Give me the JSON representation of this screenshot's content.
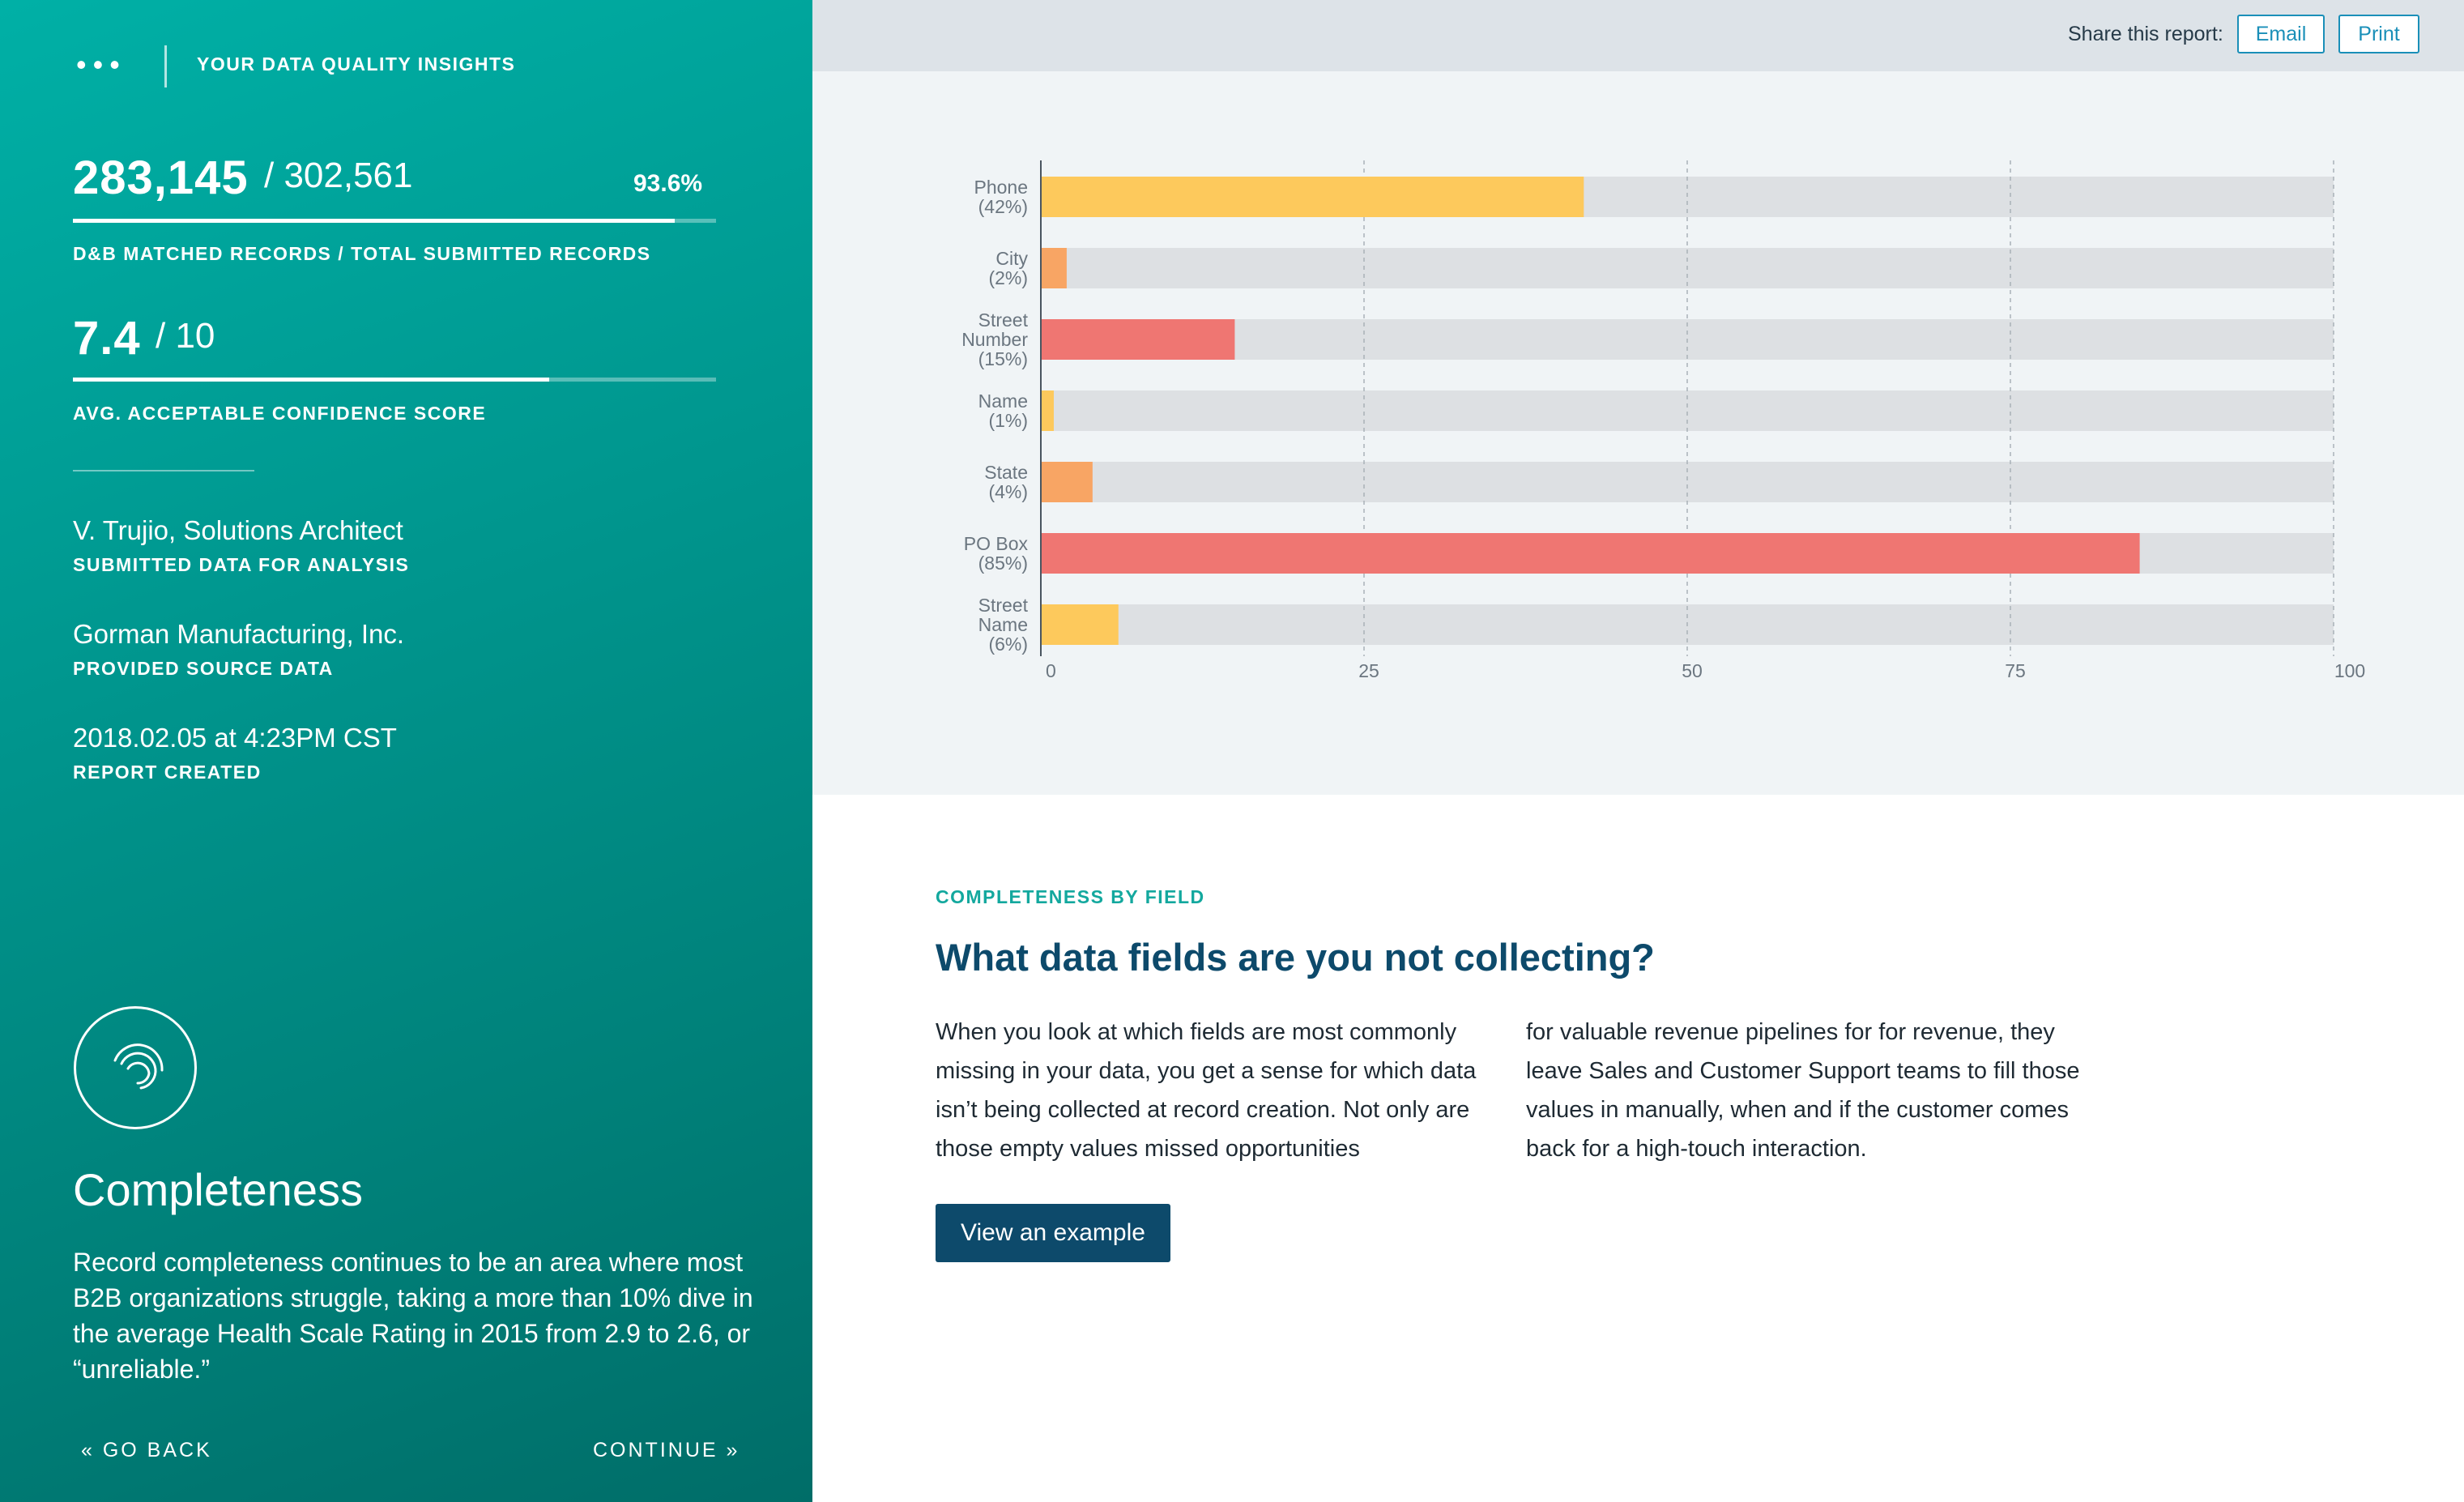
{
  "sidebar": {
    "menu_glyph": "•••",
    "title": "YOUR DATA QUALITY INSIGHTS",
    "matched": {
      "value": "283,145",
      "total": "/ 302,561",
      "percent": "93.6%",
      "progress": 0.936,
      "label": "D&B MATCHED RECORDS / TOTAL SUBMITTED RECORDS"
    },
    "confidence": {
      "value": "7.4",
      "total": "/ 10",
      "progress": 0.74,
      "label": "AVG. ACCEPTABLE CONFIDENCE SCORE"
    },
    "submitted_by": {
      "value": "V. Trujio, Solutions Architect",
      "label": "SUBMITTED DATA FOR ANALYSIS"
    },
    "source": {
      "value": "Gorman Manufacturing, Inc.",
      "label": "PROVIDED SOURCE DATA"
    },
    "created": {
      "value": "2018.02.05 at 4:23PM CST",
      "label": "REPORT CREATED"
    },
    "section_icon": "completeness-circle-icon",
    "section_title": "Completeness",
    "section_description": "Record completeness continues to be an area where most B2B organizations struggle, taking a more than 10% dive in the average Health Scale Rating in 2015 from 2.9 to 2.6, or “unreliable.”",
    "back_label": "« GO BACK",
    "continue_label": "CONTINUE »"
  },
  "share": {
    "label": "Share this report:",
    "email_label": "Email",
    "print_label": "Print"
  },
  "chart_data": {
    "type": "bar",
    "orientation": "horizontal",
    "categories": [
      [
        "Phone",
        "(42%)"
      ],
      [
        "City",
        "(2%)"
      ],
      [
        "Street",
        "Number",
        "(15%)"
      ],
      [
        "Name",
        "(1%)"
      ],
      [
        "State",
        "(4%)"
      ],
      [
        "PO Box",
        "(85%)"
      ],
      [
        "Street",
        "Name",
        "(6%)"
      ]
    ],
    "values": [
      42,
      2,
      15,
      1,
      4,
      85,
      6
    ],
    "bar_colors": [
      "#fdc95c",
      "#f8a564",
      "#ef7672",
      "#fdc95c",
      "#f8a564",
      "#ef7672",
      "#fdc95c"
    ],
    "track_color": "#dde0e3",
    "xlim": [
      0,
      100
    ],
    "xticks": [
      "0",
      "25",
      "50",
      "75",
      "100"
    ],
    "grid": "vertical-dashed"
  },
  "content": {
    "eyebrow": "COMPLETENESS BY FIELD",
    "headline": "What data fields are you not collecting?",
    "col1": "When you look at which fields are most commonly missing in your data, you get a sense for which data isn’t being collected at record creation. Not only are those empty values missed opportunities",
    "col2": "for valuable revenue pipelines for for revenue, they leave Sales and Customer Support teams to fill those values in manually, when and if the customer comes back for a high-touch interaction.",
    "cta_label": "View an example"
  },
  "colors": {
    "sidebar_gradient_start": "#00b0a6",
    "sidebar_gradient_end": "#006d68",
    "accent_teal": "#13a89e",
    "navy": "#0d4a6b",
    "link_blue": "#1a8fb8"
  }
}
